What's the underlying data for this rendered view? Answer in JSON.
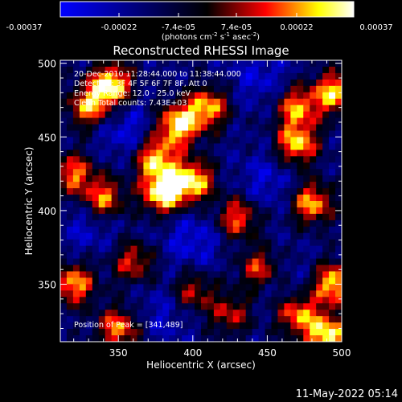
{
  "colorbar": {
    "ticks": [
      "-0.00037",
      "-0.00022",
      "-7.4e-05",
      "7.4e-05",
      "0.00022",
      "0.00037"
    ],
    "unit_main": "(photons cm",
    "unit_sup1": "-2",
    "unit_mid": " s",
    "unit_sup2": "-1",
    "unit_mid2": " asec",
    "unit_sup3": "-2",
    "unit_end": ")",
    "range": [
      -0.00037,
      0.00037
    ],
    "colormap": [
      "#0000ff",
      "#000000",
      "#ff0000",
      "#ffff00",
      "#ffffff"
    ]
  },
  "info": {
    "line1": "20-Dec-2010 11:28:44.000 to 11:38:44.000",
    "line2": "Detectors: 3F 4F 5F 6F 7F 8F, Att 0",
    "line3": "Energy Range: 12.0 - 25.0 keV",
    "line4": "Clean    Total counts: 7.43E+03",
    "peak": "Position of Peak = [341,489]"
  },
  "footer": {
    "timestamp": "11-May-2022 05:14"
  },
  "chart_data": {
    "type": "heatmap",
    "title": "Reconstructed RHESSI Image",
    "xlabel": "Heliocentric X (arcsec)",
    "ylabel": "Heliocentric Y (arcsec)",
    "xlim": [
      311,
      500
    ],
    "ylim": [
      311,
      502
    ],
    "xticks": [
      350,
      400,
      450,
      500
    ],
    "yticks": [
      350,
      400,
      450,
      500
    ],
    "peak": [
      341,
      489
    ],
    "sources": [
      {
        "x": 345,
        "y": 485,
        "amp": 0.95
      },
      {
        "x": 330,
        "y": 470,
        "amp": 0.7
      },
      {
        "x": 390,
        "y": 458,
        "amp": 0.9
      },
      {
        "x": 410,
        "y": 470,
        "amp": 0.75
      },
      {
        "x": 375,
        "y": 435,
        "amp": 0.8
      },
      {
        "x": 400,
        "y": 420,
        "amp": 0.85
      },
      {
        "x": 380,
        "y": 412,
        "amp": 0.95
      },
      {
        "x": 340,
        "y": 408,
        "amp": 0.7
      },
      {
        "x": 320,
        "y": 425,
        "amp": 0.65
      },
      {
        "x": 470,
        "y": 470,
        "amp": 0.7
      },
      {
        "x": 470,
        "y": 445,
        "amp": 0.8
      },
      {
        "x": 495,
        "y": 480,
        "amp": 0.8
      },
      {
        "x": 480,
        "y": 405,
        "amp": 0.75
      },
      {
        "x": 430,
        "y": 395,
        "amp": 0.65
      },
      {
        "x": 445,
        "y": 360,
        "amp": 0.6
      },
      {
        "x": 495,
        "y": 350,
        "amp": 0.85
      },
      {
        "x": 470,
        "y": 330,
        "amp": 0.7
      },
      {
        "x": 490,
        "y": 315,
        "amp": 0.9
      },
      {
        "x": 320,
        "y": 350,
        "amp": 0.75
      },
      {
        "x": 350,
        "y": 320,
        "amp": 0.7
      },
      {
        "x": 400,
        "y": 345,
        "amp": 0.5
      },
      {
        "x": 425,
        "y": 330,
        "amp": 0.5
      },
      {
        "x": 360,
        "y": 365,
        "amp": 0.55
      }
    ],
    "valleys": [
      {
        "x": 355,
        "y": 455,
        "amp": 0.7
      },
      {
        "x": 450,
        "y": 420,
        "amp": 0.6
      },
      {
        "x": 400,
        "y": 380,
        "amp": 0.7
      },
      {
        "x": 445,
        "y": 490,
        "amp": 0.6
      },
      {
        "x": 330,
        "y": 390,
        "amp": 0.55
      },
      {
        "x": 380,
        "y": 330,
        "amp": 0.5
      },
      {
        "x": 460,
        "y": 350,
        "amp": 0.4
      }
    ]
  }
}
